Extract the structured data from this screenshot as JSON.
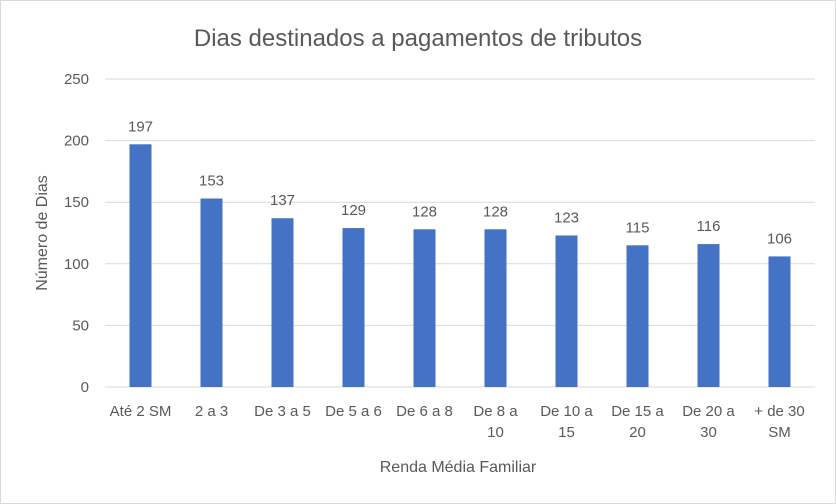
{
  "chart_data": {
    "type": "bar",
    "title": "Dias destinados a pagamentos de tributos",
    "xlabel": "Renda Média Familiar",
    "ylabel": "Número de Dias",
    "categories": [
      [
        "Até 2 SM"
      ],
      [
        "2 a 3"
      ],
      [
        "De 3 a 5"
      ],
      [
        "De 5 a 6"
      ],
      [
        "De 6 a 8"
      ],
      [
        "De 8 a",
        "10"
      ],
      [
        "De 10 a",
        "15"
      ],
      [
        "De 15 a",
        "20"
      ],
      [
        "De 20 a",
        "30"
      ],
      [
        "+ de 30",
        "SM"
      ]
    ],
    "values": [
      197,
      153,
      137,
      129,
      128,
      128,
      123,
      115,
      116,
      106
    ],
    "ylim": [
      0,
      250
    ],
    "yticks": [
      0,
      50,
      100,
      150,
      200,
      250
    ],
    "grid": true,
    "legend": "none",
    "bar_color": "#4472c4"
  }
}
